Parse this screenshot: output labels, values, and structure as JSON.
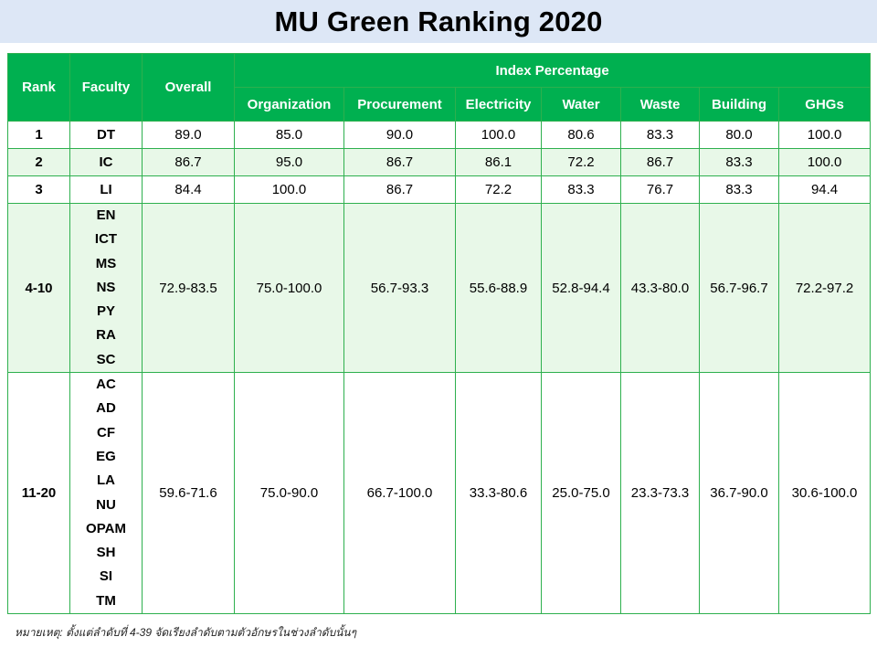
{
  "title": "MU Green Ranking 2020",
  "headers": {
    "rank": "Rank",
    "faculty": "Faculty",
    "overall": "Overall",
    "index_group": "Index Percentage",
    "index": [
      "Organization",
      "Procurement",
      "Electricity",
      "Water",
      "Waste",
      "Building",
      "GHGs"
    ]
  },
  "rows": [
    {
      "rank": "1",
      "faculty": [
        "DT"
      ],
      "overall": "89.0",
      "index": [
        "85.0",
        "90.0",
        "100.0",
        "80.6",
        "83.3",
        "80.0",
        "100.0"
      ]
    },
    {
      "rank": "2",
      "faculty": [
        "IC"
      ],
      "overall": "86.7",
      "index": [
        "95.0",
        "86.7",
        "86.1",
        "72.2",
        "86.7",
        "83.3",
        "100.0"
      ]
    },
    {
      "rank": "3",
      "faculty": [
        "LI"
      ],
      "overall": "84.4",
      "index": [
        "100.0",
        "86.7",
        "72.2",
        "83.3",
        "76.7",
        "83.3",
        "94.4"
      ]
    },
    {
      "rank": "4-10",
      "faculty": [
        "EN",
        "ICT",
        "MS",
        "NS",
        "PY",
        "RA",
        "SC"
      ],
      "overall": "72.9-83.5",
      "index": [
        "75.0-100.0",
        "56.7-93.3",
        "55.6-88.9",
        "52.8-94.4",
        "43.3-80.0",
        "56.7-96.7",
        "72.2-97.2"
      ]
    },
    {
      "rank": "11-20",
      "faculty": [
        "AC",
        "AD",
        "CF",
        "EG",
        "LA",
        "NU",
        "OPAM",
        "SH",
        "SI",
        "TM"
      ],
      "overall": "59.6-71.6",
      "index": [
        "75.0-90.0",
        "66.7-100.0",
        "33.3-80.6",
        "25.0-75.0",
        "23.3-73.3",
        "36.7-90.0",
        "30.6-100.0"
      ]
    }
  ],
  "note": "หมายเหตุ: ตั้งแต่ลำดับที่ 4-39 จัดเรียงลำดับตามตัวอักษรในช่วงลำดับนั้นๆ",
  "colors": {
    "header_bg": "#00b050",
    "border": "#2eb04e",
    "alt_row": "#e8f8e8",
    "title_bg": "#dde7f6"
  }
}
